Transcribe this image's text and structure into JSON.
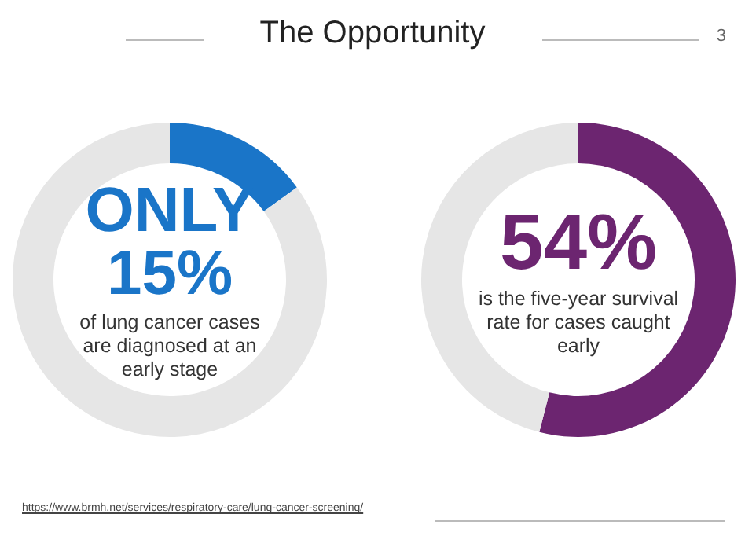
{
  "chart_data": [
    {
      "type": "donut",
      "title": "The Opportunity",
      "categories": [
        null,
        null
      ],
      "values": [
        15,
        85
      ],
      "colors": [
        "#1a75c8",
        "#e6e6e6"
      ],
      "value_labels": [
        "15%",
        null
      ],
      "annotations": [
        "ONLY",
        "of lung cancer cases are diagnosed at an early stage",
        "3",
        "https://www.brmh.net/services/respiratory-care/lung-cancer-screening/"
      ]
    },
    {
      "type": "donut",
      "categories": [
        null,
        null
      ],
      "values": [
        54,
        46
      ],
      "colors": [
        "#6c2570",
        "#e6e6e6"
      ],
      "value_labels": [
        "54%",
        null
      ],
      "annotations": [
        "is the five-year survival rate for cases caught early"
      ]
    }
  ]
}
